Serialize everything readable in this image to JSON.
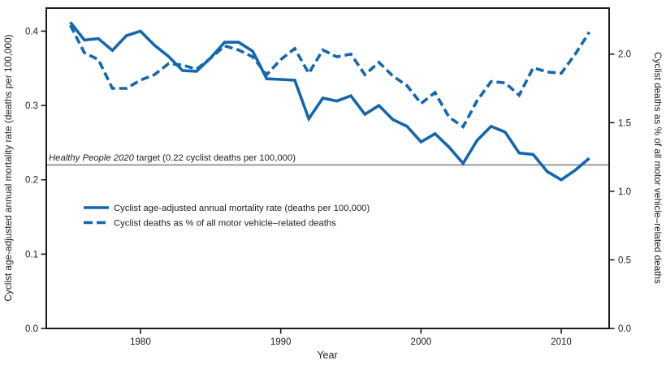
{
  "figure": {
    "bottom_axis_title": "Year",
    "left_axis_title": "Cyclist age-adjusted annual mortality rate (deaths per 100,000)",
    "right_axis_title": "Cyclist deaths as % of all motor vehicle–related deaths",
    "target_annotation": {
      "italic": "Healthy People 2020",
      "rest": " target (0.22 cyclist deaths per 100,000)"
    },
    "legend": {
      "items": [
        {
          "style": "solid",
          "label": "Cyclist age-adjusted annual mortality rate (deaths per 100,000)"
        },
        {
          "style": "dashed",
          "label": "Cyclist deaths as % of all motor vehicle–related deaths"
        }
      ],
      "position": "inside-left-middle"
    },
    "colors": {
      "series_blue": "#1467ad",
      "target_gray": "#9c9c9c",
      "axis_black": "#1a1a1a"
    }
  },
  "chart_data": {
    "type": "line",
    "title": "",
    "xlabel": "Year",
    "x": [
      1975,
      1976,
      1977,
      1978,
      1979,
      1980,
      1981,
      1982,
      1983,
      1984,
      1985,
      1986,
      1987,
      1988,
      1989,
      1990,
      1991,
      1992,
      1993,
      1994,
      1995,
      1996,
      1997,
      1998,
      1999,
      2000,
      2001,
      2002,
      2003,
      2004,
      2005,
      2006,
      2007,
      2008,
      2009,
      2010,
      2011,
      2012
    ],
    "series": [
      {
        "name": "Cyclist age-adjusted annual mortality rate (deaths per 100,000)",
        "axis": "left",
        "style": "solid",
        "values": [
          0.412,
          0.388,
          0.39,
          0.374,
          0.394,
          0.4,
          0.381,
          0.366,
          0.347,
          0.346,
          0.364,
          0.385,
          0.385,
          0.373,
          0.336,
          0.335,
          0.334,
          0.282,
          0.31,
          0.306,
          0.313,
          0.288,
          0.3,
          0.281,
          0.272,
          0.251,
          0.262,
          0.244,
          0.222,
          0.253,
          0.272,
          0.264,
          0.236,
          0.234,
          0.211,
          0.2,
          0.213,
          0.229
        ]
      },
      {
        "name": "Cyclist deaths as % of all motor vehicle–related deaths",
        "axis": "right",
        "style": "dashed",
        "values": [
          2.21,
          2.01,
          1.96,
          1.75,
          1.75,
          1.81,
          1.85,
          1.93,
          1.92,
          1.89,
          1.97,
          2.06,
          2.03,
          1.98,
          1.85,
          1.96,
          2.04,
          1.86,
          2.03,
          1.98,
          2.0,
          1.85,
          1.94,
          1.84,
          1.77,
          1.64,
          1.72,
          1.54,
          1.47,
          1.66,
          1.8,
          1.79,
          1.7,
          1.9,
          1.87,
          1.86,
          2.0,
          2.16
        ]
      }
    ],
    "target_line": {
      "axis": "left",
      "value": 0.22,
      "label": "Healthy People 2020 target (0.22 cyclist deaths per 100,000)"
    },
    "left_axis": {
      "label": "Cyclist age-adjusted annual mortality rate (deaths per 100,000)",
      "ticks": [
        0.0,
        0.1,
        0.2,
        0.3,
        0.4
      ],
      "tick_labels": [
        "0.0",
        "0.1",
        "0.2",
        "0.3",
        "0.4"
      ],
      "range": [
        0,
        0.431
      ]
    },
    "right_axis": {
      "label": "Cyclist deaths as % of all motor vehicle–related deaths",
      "ticks": [
        0.0,
        0.5,
        1.0,
        1.5,
        2.0
      ],
      "tick_labels": [
        "0.0",
        "0.5",
        "1.0",
        "1.5",
        "2.0"
      ],
      "range": [
        0,
        2.335
      ]
    },
    "x_axis": {
      "label": "Year",
      "ticks": [
        1980,
        1990,
        2000,
        2010
      ],
      "tick_labels": [
        "1980",
        "1990",
        "2000",
        "2010"
      ],
      "range": [
        1973.3,
        2013.4
      ]
    },
    "grid": false,
    "legend_position": "inside lower-left quadrant"
  }
}
